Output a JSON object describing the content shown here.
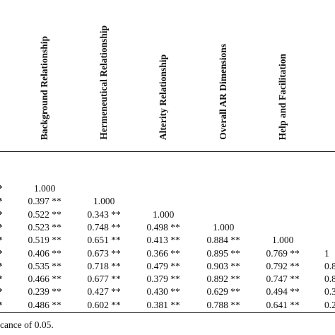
{
  "table": {
    "headers": [
      "Background Relationship",
      "Hermeneutical Relationship",
      "Alterity Relationship",
      "Overall AR Dimensions",
      "Help and Facilitation"
    ],
    "rows": [
      [
        "*",
        "1.000"
      ],
      [
        "*",
        "0.397 **",
        "1.000"
      ],
      [
        "*",
        "0.522 **",
        "0.343 **",
        "1.000"
      ],
      [
        "*",
        "0.523 **",
        "0.748 **",
        "0.498 **",
        "1.000"
      ],
      [
        "*",
        "0.519 **",
        "0.651 **",
        "0.413 **",
        "0.884 **",
        "1.000"
      ],
      [
        "*",
        "0.406 **",
        "0.673 **",
        "0.366 **",
        "0.895 **",
        "0.769 **",
        "1"
      ],
      [
        "*",
        "0.535 **",
        "0.718 **",
        "0.479 **",
        "0.903 **",
        "0.792 **",
        "0.8"
      ],
      [
        "*",
        "0.466 **",
        "0.677 **",
        "0.379 **",
        "0.892 **",
        "0.747 **",
        "0.8"
      ],
      [
        "*",
        "0.239 **",
        "0.427 **",
        "0.430 **",
        "0.629 **",
        "0.494 **",
        "0.3"
      ],
      [
        "*",
        "0.486 **",
        "0.602 **",
        "0.381 **",
        "0.788 **",
        "0.641 **",
        "0.2"
      ]
    ]
  },
  "footnote": "cance of 0.05."
}
